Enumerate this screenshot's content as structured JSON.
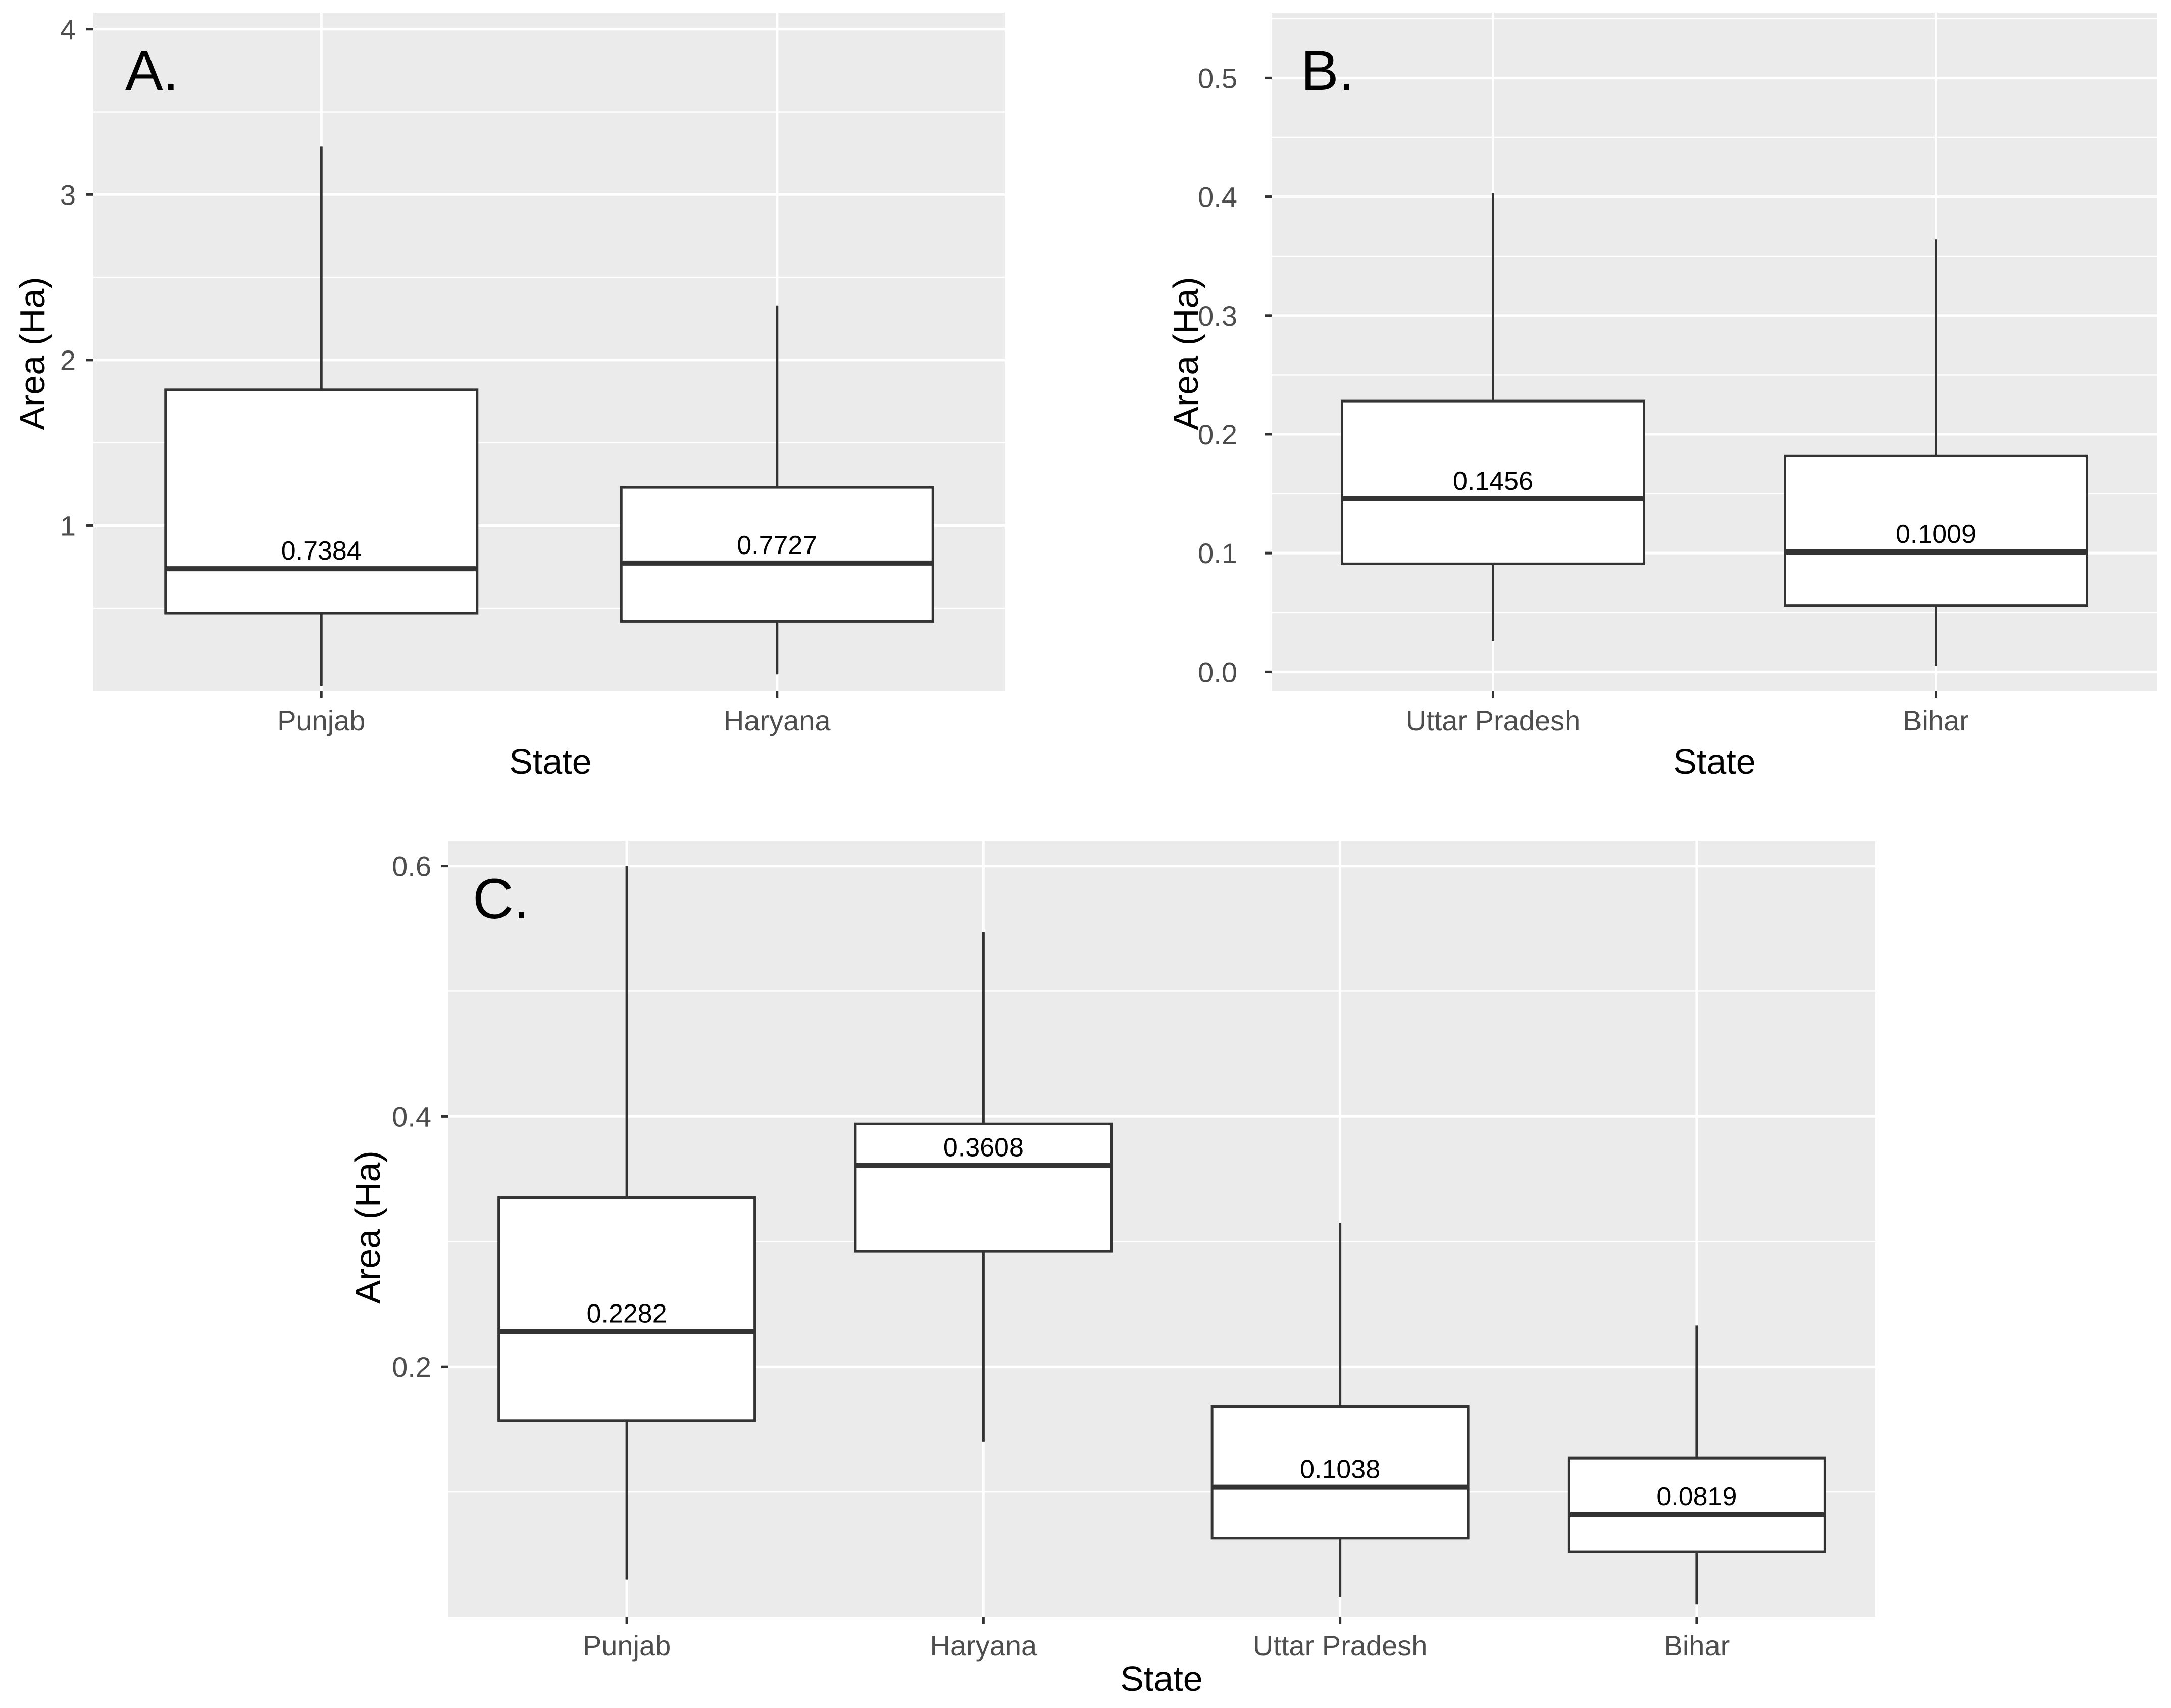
{
  "colors": {
    "panel_background": "#ebebeb",
    "grid": "#ffffff",
    "box_fill": "#ffffff",
    "box_stroke": "#333333",
    "tick_text": "#4d4d4d"
  },
  "chart_data": [
    {
      "type": "boxplot",
      "panel_label": "A.",
      "xlabel": "State",
      "ylabel": "Area (Ha)",
      "ylim": [
        0.0,
        4.1
      ],
      "yticks": [
        1,
        2,
        3,
        4
      ],
      "ytick_labels": [
        "1",
        "2",
        "3",
        "4"
      ],
      "categories": [
        "Punjab",
        "Haryana"
      ],
      "boxes": [
        {
          "category": "Punjab",
          "whisker_low": 0.03,
          "q1": 0.47,
          "median": 0.7384,
          "q3": 1.82,
          "whisker_high": 3.29,
          "median_label": "0.7384"
        },
        {
          "category": "Haryana",
          "whisker_low": 0.1,
          "q1": 0.42,
          "median": 0.7727,
          "q3": 1.23,
          "whisker_high": 2.33,
          "median_label": "0.7727"
        }
      ]
    },
    {
      "type": "boxplot",
      "panel_label": "B.",
      "xlabel": "State",
      "ylabel": "Area (Ha)",
      "ylim": [
        -0.016,
        0.555
      ],
      "yticks": [
        0.0,
        0.1,
        0.2,
        0.3,
        0.4,
        0.5
      ],
      "ytick_labels": [
        "0.0",
        "0.1",
        "0.2",
        "0.3",
        "0.4",
        "0.5"
      ],
      "categories": [
        "Uttar Pradesh",
        "Bihar"
      ],
      "boxes": [
        {
          "category": "Uttar Pradesh",
          "whisker_low": 0.026,
          "q1": 0.091,
          "median": 0.1456,
          "q3": 0.228,
          "whisker_high": 0.403,
          "median_label": "0.1456"
        },
        {
          "category": "Bihar",
          "whisker_low": 0.005,
          "q1": 0.056,
          "median": 0.1009,
          "q3": 0.182,
          "whisker_high": 0.364,
          "median_label": "0.1009"
        }
      ]
    },
    {
      "type": "boxplot",
      "panel_label": "C.",
      "xlabel": "State",
      "ylabel": "Area (Ha)",
      "ylim": [
        0.0,
        0.62
      ],
      "yticks": [
        0.2,
        0.4,
        0.6
      ],
      "ytick_labels": [
        "0.2",
        "0.4",
        "0.6"
      ],
      "categories": [
        "Punjab",
        "Haryana",
        "Uttar Pradesh",
        "Bihar"
      ],
      "boxes": [
        {
          "category": "Punjab",
          "whisker_low": 0.03,
          "q1": 0.157,
          "median": 0.2282,
          "q3": 0.335,
          "whisker_high": 0.6,
          "median_label": "0.2282"
        },
        {
          "category": "Haryana",
          "whisker_low": 0.14,
          "q1": 0.292,
          "median": 0.3608,
          "q3": 0.394,
          "whisker_high": 0.547,
          "median_label": "0.3608"
        },
        {
          "category": "Uttar Pradesh",
          "whisker_low": 0.016,
          "q1": 0.063,
          "median": 0.1038,
          "q3": 0.168,
          "whisker_high": 0.315,
          "median_label": "0.1038"
        },
        {
          "category": "Bihar",
          "whisker_low": 0.01,
          "q1": 0.052,
          "median": 0.0819,
          "q3": 0.127,
          "whisker_high": 0.233,
          "median_label": "0.0819"
        }
      ]
    }
  ]
}
